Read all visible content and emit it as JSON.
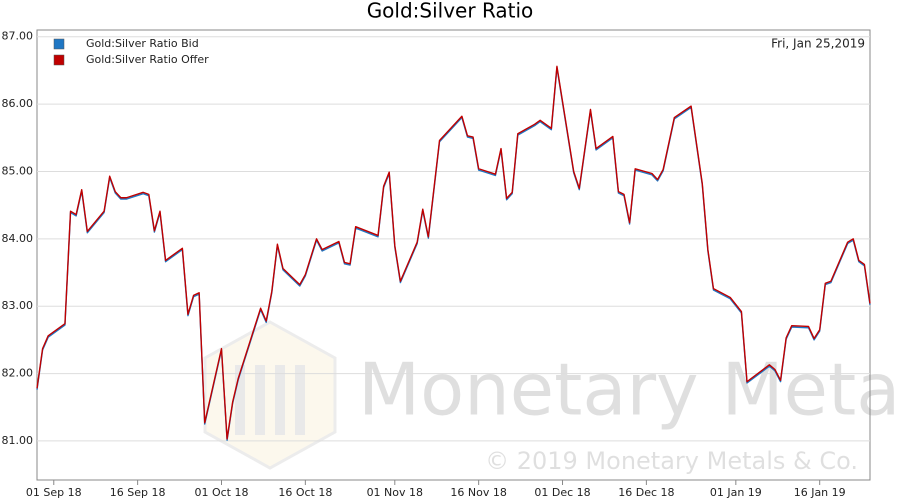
{
  "chart_data": {
    "type": "line",
    "title": "Gold:Silver Ratio",
    "annotation": "Fri, Jan 25,2019",
    "watermark": "Monetary Metals",
    "copyright": "© 2019 Monetary Metals & Co.",
    "x": [
      "2018-08-29",
      "2018-08-30",
      "2018-08-31",
      "2018-09-03",
      "2018-09-04",
      "2018-09-05",
      "2018-09-06",
      "2018-09-07",
      "2018-09-10",
      "2018-09-11",
      "2018-09-12",
      "2018-09-13",
      "2018-09-14",
      "2018-09-17",
      "2018-09-18",
      "2018-09-19",
      "2018-09-20",
      "2018-09-21",
      "2018-09-24",
      "2018-09-25",
      "2018-09-26",
      "2018-09-27",
      "2018-09-28",
      "2018-10-01",
      "2018-10-02",
      "2018-10-03",
      "2018-10-04",
      "2018-10-08",
      "2018-10-09",
      "2018-10-10",
      "2018-10-11",
      "2018-10-12",
      "2018-10-15",
      "2018-10-16",
      "2018-10-18",
      "2018-10-19",
      "2018-10-22",
      "2018-10-23",
      "2018-10-24",
      "2018-10-25",
      "2018-10-29",
      "2018-10-30",
      "2018-10-31",
      "2018-11-01",
      "2018-11-02",
      "2018-11-05",
      "2018-11-06",
      "2018-11-07",
      "2018-11-09",
      "2018-11-13",
      "2018-11-14",
      "2018-11-15",
      "2018-11-16",
      "2018-11-19",
      "2018-11-20",
      "2018-11-21",
      "2018-11-22",
      "2018-11-23",
      "2018-11-26",
      "2018-11-27",
      "2018-11-29",
      "2018-11-30",
      "2018-12-03",
      "2018-12-04",
      "2018-12-06",
      "2018-12-07",
      "2018-12-10",
      "2018-12-11",
      "2018-12-12",
      "2018-12-13",
      "2018-12-14",
      "2018-12-17",
      "2018-12-18",
      "2018-12-19",
      "2018-12-21",
      "2018-12-24",
      "2018-12-26",
      "2018-12-27",
      "2018-12-28",
      "2018-12-31",
      "2019-01-02",
      "2019-01-03",
      "2019-01-07",
      "2019-01-08",
      "2019-01-09",
      "2019-01-10",
      "2019-01-11",
      "2019-01-14",
      "2019-01-15",
      "2019-01-16",
      "2019-01-17",
      "2019-01-18",
      "2019-01-21",
      "2019-01-22",
      "2019-01-23",
      "2019-01-24",
      "2019-01-25"
    ],
    "series": [
      {
        "name": "Gold:Silver Ratio Bid",
        "color": "#1f77c4",
        "values": [
          81.76,
          82.35,
          82.54,
          82.72,
          84.39,
          84.34,
          84.71,
          84.09,
          84.39,
          84.91,
          84.68,
          84.59,
          84.59,
          84.67,
          84.64,
          84.1,
          84.39,
          83.66,
          83.84,
          82.86,
          83.14,
          83.18,
          81.25,
          82.35,
          81.01,
          81.56,
          81.91,
          82.95,
          82.76,
          83.2,
          83.9,
          83.54,
          83.3,
          83.45,
          83.98,
          83.82,
          83.94,
          83.63,
          83.61,
          84.16,
          84.03,
          84.76,
          84.97,
          83.88,
          83.35,
          83.93,
          84.42,
          84.01,
          85.44,
          85.8,
          85.51,
          85.49,
          85.02,
          84.94,
          85.32,
          84.58,
          84.67,
          85.54,
          85.68,
          85.74,
          85.62,
          86.54,
          84.98,
          84.73,
          85.9,
          85.32,
          85.5,
          84.68,
          84.64,
          84.22,
          85.02,
          84.95,
          84.86,
          85.01,
          85.78,
          85.95,
          84.8,
          83.82,
          83.24,
          83.11,
          82.9,
          81.86,
          82.11,
          82.04,
          81.88,
          82.51,
          82.69,
          82.68,
          82.5,
          82.63,
          83.32,
          83.35,
          83.93,
          83.98,
          83.66,
          83.6,
          83.02
        ]
      },
      {
        "name": "Gold:Silver Ratio Offer",
        "color": "#c00000",
        "values": [
          81.78,
          82.37,
          82.56,
          82.74,
          84.41,
          84.36,
          84.73,
          84.11,
          84.41,
          84.93,
          84.7,
          84.61,
          84.61,
          84.69,
          84.66,
          84.12,
          84.41,
          83.68,
          83.86,
          82.88,
          83.16,
          83.2,
          81.27,
          82.37,
          81.03,
          81.58,
          81.93,
          82.97,
          82.78,
          83.22,
          83.92,
          83.56,
          83.32,
          83.47,
          84.0,
          83.84,
          83.96,
          83.65,
          83.63,
          84.18,
          84.05,
          84.78,
          84.99,
          83.9,
          83.37,
          83.95,
          84.44,
          84.03,
          85.46,
          85.82,
          85.53,
          85.51,
          85.04,
          84.96,
          85.34,
          84.6,
          84.69,
          85.56,
          85.7,
          85.76,
          85.64,
          86.56,
          85.0,
          84.75,
          85.92,
          85.34,
          85.52,
          84.7,
          84.66,
          84.24,
          85.04,
          84.97,
          84.88,
          85.03,
          85.8,
          85.97,
          84.82,
          83.84,
          83.26,
          83.13,
          82.92,
          81.88,
          82.13,
          82.06,
          81.9,
          82.53,
          82.71,
          82.7,
          82.52,
          82.65,
          83.34,
          83.37,
          83.95,
          84.0,
          83.68,
          83.62,
          83.04
        ]
      }
    ],
    "xlim": [
      "2018-08-29",
      "2019-01-25"
    ],
    "xticks": [
      {
        "value": "2018-09-01",
        "label": "01 Sep 18"
      },
      {
        "value": "2018-09-16",
        "label": "16 Sep 18"
      },
      {
        "value": "2018-10-01",
        "label": "01 Oct 18"
      },
      {
        "value": "2018-10-16",
        "label": "16 Oct 18"
      },
      {
        "value": "2018-11-01",
        "label": "01 Nov 18"
      },
      {
        "value": "2018-11-16",
        "label": "16 Nov 18"
      },
      {
        "value": "2018-12-01",
        "label": "01 Dec 18"
      },
      {
        "value": "2018-12-16",
        "label": "16 Dec 18"
      },
      {
        "value": "2019-01-01",
        "label": "01 Jan 19"
      },
      {
        "value": "2019-01-16",
        "label": "16 Jan 19"
      }
    ],
    "ylim": [
      80.42,
      87.1
    ],
    "yticks": [
      {
        "value": 81,
        "label": "81.00"
      },
      {
        "value": 82,
        "label": "82.00"
      },
      {
        "value": 83,
        "label": "83.00"
      },
      {
        "value": 84,
        "label": "84.00"
      },
      {
        "value": 85,
        "label": "85.00"
      },
      {
        "value": 86,
        "label": "86.00"
      },
      {
        "value": 87,
        "label": "87.00"
      }
    ],
    "grid": true,
    "legend": "top-left"
  }
}
